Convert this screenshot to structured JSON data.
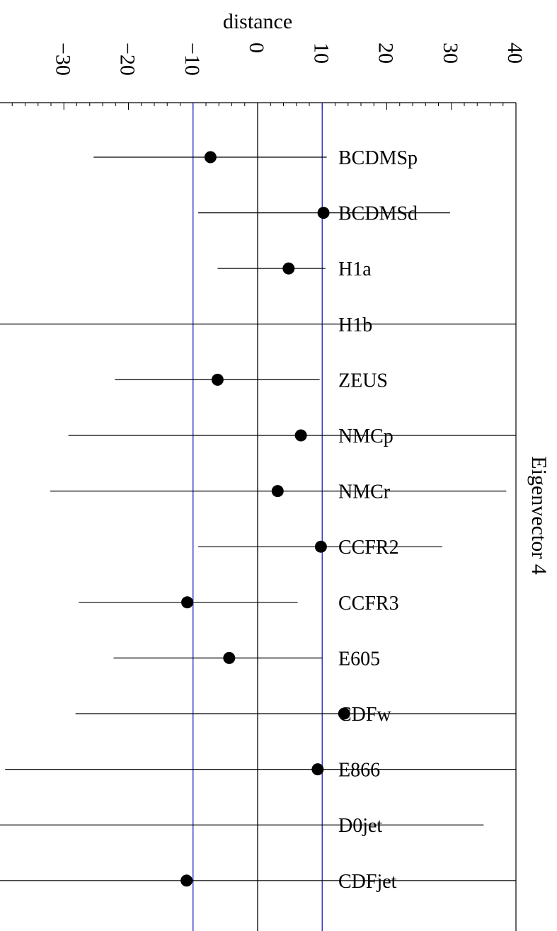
{
  "chart_data": {
    "type": "scatter",
    "title": "",
    "xlabel": "distance",
    "ylabel": "",
    "side_label": "Eigenvector  4",
    "orientation": "rotated-90-clockwise",
    "xlim": [
      -40,
      40
    ],
    "xticks": [
      -30,
      -20,
      -10,
      0,
      10,
      20,
      30,
      40
    ],
    "xtick_labels": [
      "−30",
      "−20",
      "−10",
      "0",
      "10",
      "20",
      "30",
      "40"
    ],
    "reference_lines": [
      {
        "x": -10,
        "color": "#1f1fbf"
      },
      {
        "x": 0,
        "color": "#000000"
      },
      {
        "x": 10,
        "color": "#1f1fbf"
      }
    ],
    "categories": [
      "BCDMSp",
      "BCDMSd",
      "H1a",
      "H1b",
      "ZEUS",
      "NMCp",
      "NMCr",
      "CCFR2",
      "CCFR3",
      "E605",
      "CDFw",
      "E866",
      "D0jet",
      "CDFjet"
    ],
    "series": [
      {
        "values": [
          -7.3,
          10.2,
          4.8,
          null,
          -6.2,
          6.7,
          3.1,
          9.8,
          -10.9,
          -4.4,
          13.4,
          9.3,
          null,
          -11.0
        ],
        "err_low": [
          -25.4,
          -9.2,
          -6.2,
          -40,
          -22.1,
          -29.3,
          -32.1,
          -9.2,
          -27.7,
          -22.3,
          -28.2,
          -39.1,
          -40,
          -40
        ],
        "err_high": [
          10.7,
          29.8,
          10.5,
          40,
          9.6,
          40,
          38.5,
          28.6,
          6.2,
          10.0,
          40,
          40,
          35.0,
          40
        ]
      }
    ]
  }
}
